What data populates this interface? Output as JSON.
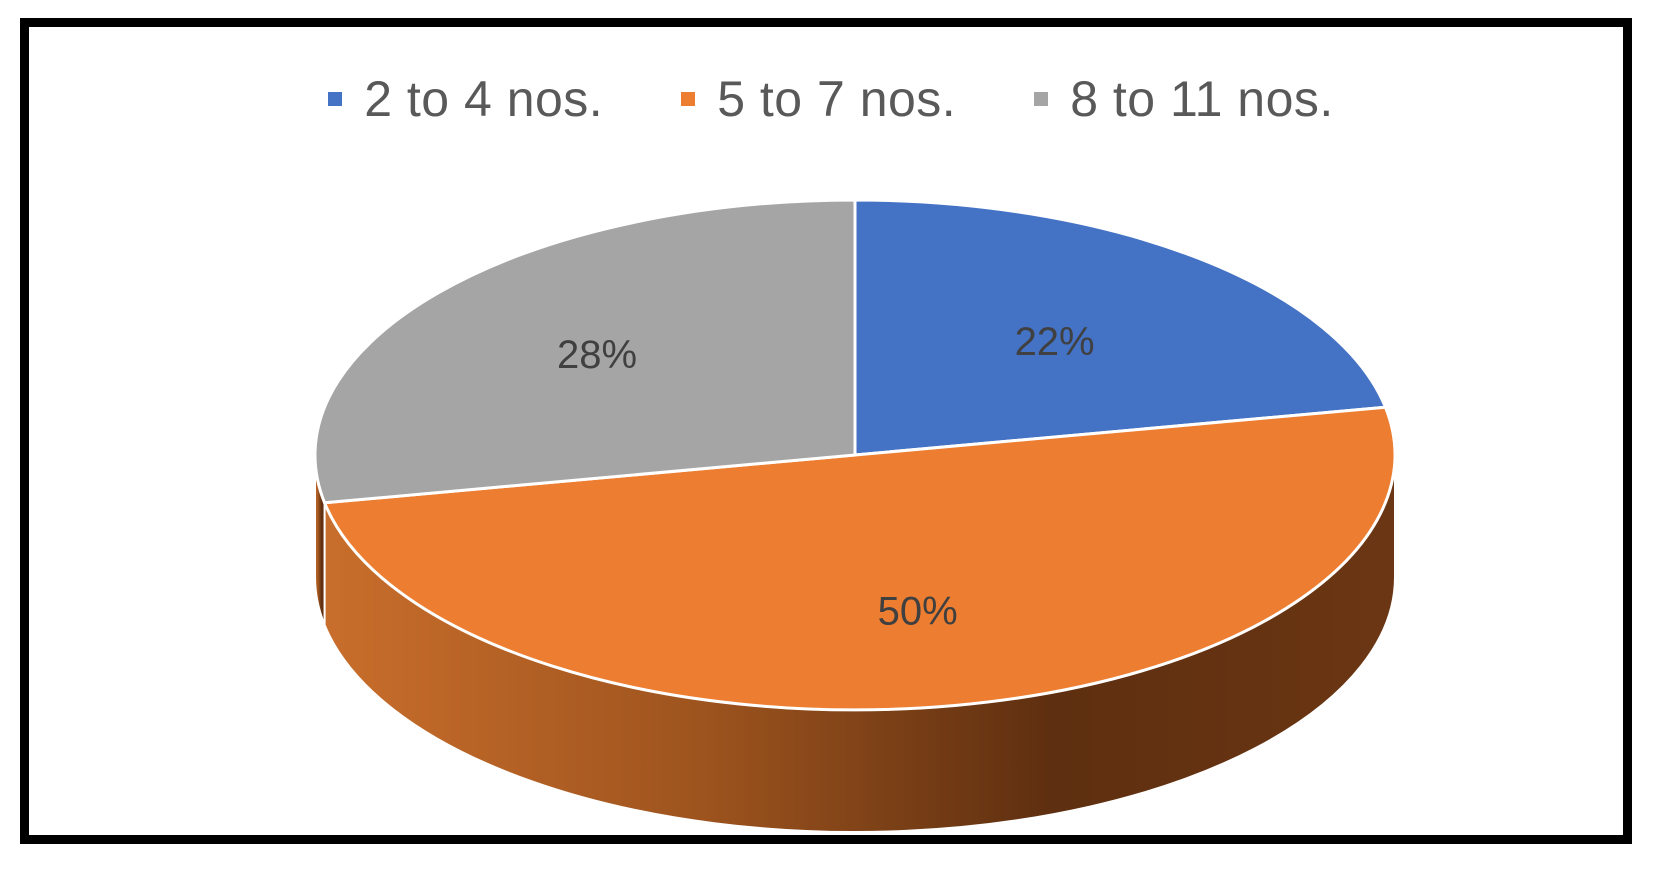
{
  "chart_data": {
    "type": "pie",
    "title": "",
    "categories": [
      "2 to 4 nos.",
      "5 to 7 nos.",
      "8 to 11 nos."
    ],
    "values": [
      22,
      50,
      28
    ],
    "labels": [
      "22%",
      "50%",
      "28%"
    ],
    "colors": [
      "#4472C4",
      "#ED7D31",
      "#A5A5A5"
    ],
    "legend_position": "top",
    "style": "3d"
  }
}
